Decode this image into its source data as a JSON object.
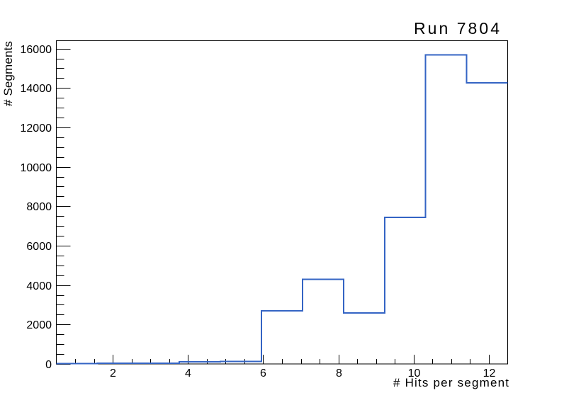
{
  "window": {
    "background": "#ffffff"
  },
  "chart_data": {
    "type": "bar",
    "subtype": "step-histogram",
    "title": "Run 7804",
    "xlabel": "# Hits per segment",
    "ylabel": "# Segments",
    "xlim": [
      0.5,
      12.5
    ],
    "ylim": [
      0,
      16400
    ],
    "n_bins": 11,
    "bin_edges": [
      0.5,
      1.5909,
      2.6818,
      3.7727,
      4.8636,
      5.9545,
      7.0455,
      8.1364,
      9.2273,
      10.3182,
      11.4091,
      12.5
    ],
    "values": [
      25,
      30,
      35,
      115,
      120,
      2690,
      4300,
      2580,
      7430,
      15690,
      14260
    ],
    "x_major_ticks": [
      2,
      4,
      6,
      8,
      10,
      12
    ],
    "x_minor_step": 0.5,
    "y_major_ticks": [
      0,
      2000,
      4000,
      6000,
      8000,
      10000,
      12000,
      14000,
      16000
    ],
    "y_minor_step": 500,
    "grid": false,
    "legend": null,
    "line_color": "#3464c4",
    "axis_color": "#000000",
    "background_color": "#ffffff"
  }
}
